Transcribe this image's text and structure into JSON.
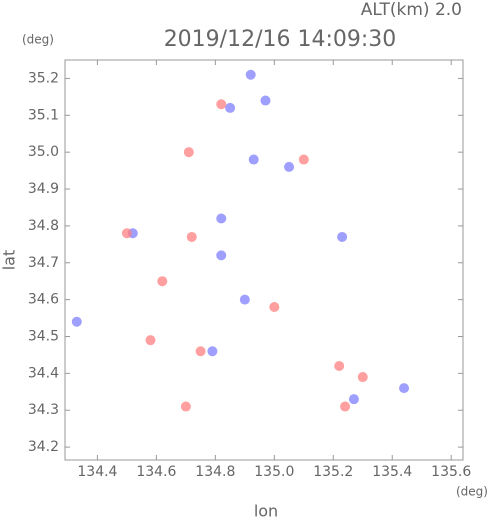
{
  "chart_data": {
    "type": "scatter",
    "title": "2019/12/16 14:09:30",
    "subtitle": "ALT(km) 2.0",
    "x_label": "lon",
    "y_label": "lat",
    "x_unit": "(deg)",
    "y_unit": "(deg)",
    "xlim": [
      134.29,
      135.64
    ],
    "ylim": [
      34.165,
      35.25
    ],
    "xticks": [
      134.4,
      134.6,
      134.8,
      {
        "value": 135.0,
        "label": "135.0"
      },
      135.2,
      135.4,
      135.6
    ],
    "yticks": [
      34.2,
      34.3,
      34.4,
      34.5,
      34.6,
      34.7,
      34.8,
      34.9,
      {
        "value": 35.0,
        "label": "35.0"
      },
      35.1,
      35.2
    ],
    "series": [
      {
        "color": "#7f7fff",
        "x": [
          134.92,
          134.85,
          134.97,
          134.93,
          135.05,
          134.52,
          134.82,
          134.82,
          134.79,
          134.33,
          135.44,
          135.27,
          135.23,
          134.9
        ],
        "values": [
          35.21,
          35.12,
          35.14,
          34.98,
          34.96,
          34.78,
          34.82,
          34.72,
          34.46,
          34.54,
          34.36,
          34.33,
          34.77,
          34.6
        ]
      },
      {
        "color": "#ff7f7f",
        "x": [
          134.82,
          134.71,
          135.1,
          134.5,
          134.72,
          134.62,
          134.7,
          134.75,
          135.22,
          135.3,
          135.24,
          135.0,
          134.58
        ],
        "values": [
          35.13,
          35.0,
          34.98,
          34.78,
          34.77,
          34.65,
          34.31,
          34.46,
          34.42,
          34.39,
          34.31,
          34.58,
          34.49
        ]
      }
    ]
  }
}
